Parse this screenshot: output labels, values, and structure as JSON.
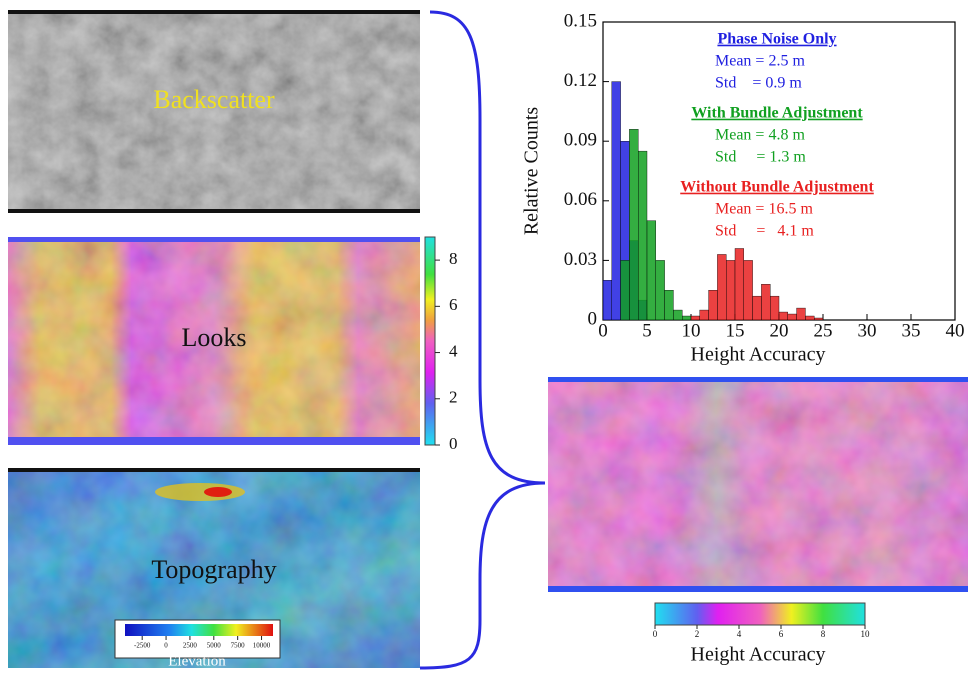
{
  "panels": {
    "backscatter": "Backscatter",
    "looks": "Looks",
    "topography": "Topography"
  },
  "looks_colorbar": {
    "lim": [
      0,
      9
    ],
    "ticks": [
      0,
      2,
      4,
      6,
      8
    ]
  },
  "elevation_colorbar": {
    "lim": [
      -4300,
      11200
    ],
    "ticks": [
      -2500,
      0,
      2500,
      5000,
      7500,
      10000
    ],
    "label": "Elevation"
  },
  "height_colorbar": {
    "lim": [
      0,
      10
    ],
    "ticks": [
      0,
      2,
      4,
      6,
      8,
      10
    ],
    "label": "Height Accuracy"
  },
  "chart_data": {
    "type": "histogram",
    "xlabel": "Height Accuracy",
    "ylabel": "Relative Counts",
    "xlim": [
      0,
      40
    ],
    "ylim": [
      0,
      0.15
    ],
    "xticks": [
      0,
      5,
      10,
      15,
      20,
      25,
      30,
      35,
      40
    ],
    "yticks": [
      0,
      0.03,
      0.06,
      0.09,
      0.12,
      0.15
    ],
    "bins": [
      0,
      1,
      2,
      3,
      4,
      5,
      6,
      7,
      8,
      9,
      10,
      11,
      12,
      13,
      14,
      15,
      16,
      17,
      18,
      19,
      20,
      21,
      22,
      23,
      24,
      25,
      26
    ],
    "series": [
      {
        "name": "Phase Noise Only",
        "color": "#2020e0",
        "lines": [
          "Mean = 2.5 m",
          "Std    = 0.9 m"
        ],
        "values": [
          0.02,
          0.12,
          0.09,
          0.04,
          0.01,
          0,
          0,
          0,
          0,
          0,
          0,
          0,
          0,
          0,
          0,
          0,
          0,
          0,
          0,
          0,
          0,
          0,
          0,
          0,
          0,
          0
        ]
      },
      {
        "name": "With Bundle Adjustment",
        "color": "#10a020",
        "lines": [
          "Mean = 4.8 m",
          "Std     = 1.3 m"
        ],
        "values": [
          0,
          0,
          0.03,
          0.096,
          0.085,
          0.05,
          0.03,
          0.015,
          0.005,
          0.002,
          0,
          0,
          0,
          0,
          0,
          0,
          0,
          0,
          0,
          0,
          0,
          0,
          0,
          0,
          0,
          0
        ]
      },
      {
        "name": "Without Bundle Adjustment",
        "color": "#e82020",
        "lines": [
          "Mean = 16.5 m",
          "Std     =   4.1 m"
        ],
        "values": [
          0,
          0,
          0,
          0,
          0,
          0,
          0,
          0,
          0,
          0,
          0.002,
          0.005,
          0.015,
          0.033,
          0.03,
          0.036,
          0.03,
          0.012,
          0.018,
          0.012,
          0.004,
          0.003,
          0.006,
          0.002,
          0.001,
          0
        ]
      }
    ]
  }
}
